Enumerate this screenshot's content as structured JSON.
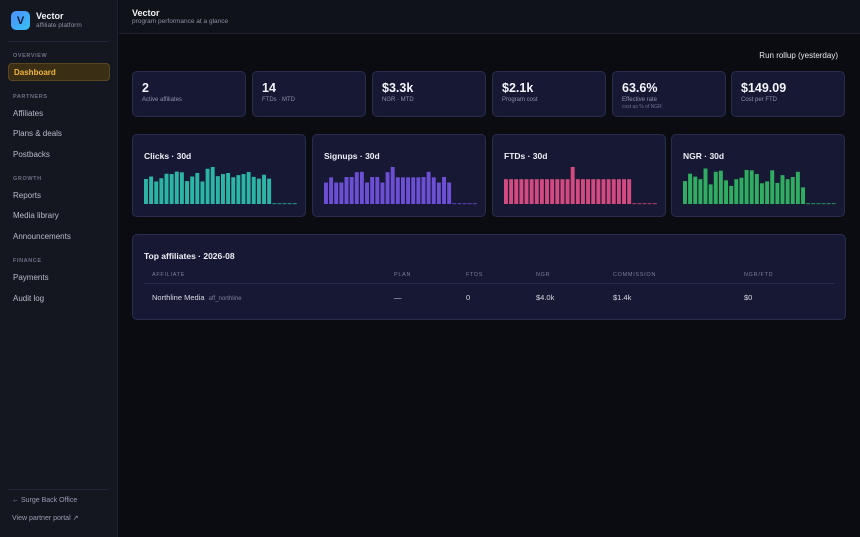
{
  "sidebar": {
    "brand": {
      "logo_letter": "V",
      "name": "Vector",
      "subtitle": "affiliate platform"
    },
    "sections": [
      {
        "title": "OVERVIEW",
        "items": [
          {
            "label": "Dashboard",
            "active": true
          }
        ]
      },
      {
        "title": "PARTNERS",
        "items": [
          {
            "label": "Affiliates"
          },
          {
            "label": "Plans & deals"
          },
          {
            "label": "Postbacks"
          }
        ]
      },
      {
        "title": "GROWTH",
        "items": [
          {
            "label": "Reports"
          },
          {
            "label": "Media library"
          },
          {
            "label": "Announcements"
          }
        ]
      },
      {
        "title": "FINANCE",
        "items": [
          {
            "label": "Payments"
          },
          {
            "label": "Audit log"
          }
        ]
      }
    ],
    "footer": {
      "back_link": "← Surge Back Office",
      "portal_link": "View partner portal ↗"
    }
  },
  "header": {
    "title": "Vector",
    "subtitle": "program performance at a glance"
  },
  "actions": {
    "rollup_label": "Run rollup (yesterday)"
  },
  "kpis": [
    {
      "value": "2",
      "label": "Active affiliates",
      "note": ""
    },
    {
      "value": "14",
      "label": "FTDs · MTD",
      "note": ""
    },
    {
      "value": "$3.3k",
      "label": "NGR · MTD",
      "note": ""
    },
    {
      "value": "$2.1k",
      "label": "Program cost",
      "note": ""
    },
    {
      "value": "63.6%",
      "label": "Effective rate",
      "note": "cost as % of NGR"
    },
    {
      "value": "$149.09",
      "label": "Cost per FTD",
      "note": ""
    }
  ],
  "chart_data": [
    {
      "type": "bar",
      "title": "Clicks · 30d",
      "color": "#2bb5a4",
      "values": [
        0.71,
        0.78,
        0.64,
        0.73,
        0.86,
        0.85,
        0.92,
        0.9,
        0.65,
        0.78,
        0.88,
        0.64,
        1.0,
        1.05,
        0.79,
        0.85,
        0.88,
        0.76,
        0.82,
        0.85,
        0.91,
        0.77,
        0.72,
        0.83,
        0.72,
        0,
        0,
        0,
        0,
        0
      ]
    },
    {
      "type": "bar",
      "title": "Signups · 30d",
      "color": "#6d4fd6",
      "values": [
        0.58,
        0.72,
        0.58,
        0.58,
        0.73,
        0.73,
        0.86,
        0.87,
        0.58,
        0.73,
        0.73,
        0.58,
        0.86,
        1.0,
        0.72,
        0.72,
        0.72,
        0.72,
        0.72,
        0.73,
        0.87,
        0.72,
        0.58,
        0.73,
        0.58,
        0,
        0,
        0,
        0,
        0
      ]
    },
    {
      "type": "bar",
      "title": "FTDs · 30d",
      "color": "#d24a80",
      "values": [
        0.67,
        0.67,
        0.67,
        0.67,
        0.67,
        0.67,
        0.67,
        0.67,
        0.67,
        0.67,
        0.67,
        0.67,
        0.67,
        1.0,
        0.67,
        0.67,
        0.67,
        0.67,
        0.67,
        0.67,
        0.67,
        0.67,
        0.67,
        0.67,
        0.67,
        0,
        0,
        0,
        0,
        0
      ]
    },
    {
      "type": "bar",
      "title": "NGR · 30d",
      "color": "#2fae62",
      "values": [
        0.62,
        0.82,
        0.74,
        0.67,
        0.96,
        0.53,
        0.87,
        0.9,
        0.64,
        0.49,
        0.67,
        0.71,
        0.92,
        0.91,
        0.81,
        0.56,
        0.61,
        0.91,
        0.57,
        0.78,
        0.67,
        0.73,
        0.87,
        0.45,
        0,
        0,
        0,
        0,
        0,
        0
      ]
    }
  ],
  "table": {
    "title": "Top affiliates · 2026-08",
    "columns": [
      "AFFILIATE",
      "PLAN",
      "FTDS",
      "NGR",
      "COMMISSION",
      "NGR/FTD"
    ],
    "rows": [
      {
        "affiliate": "Northline Media",
        "affiliate_id": "aff_northline",
        "plan": "—",
        "ftds": "0",
        "ngr": "$4.0k",
        "commission": "$1.4k",
        "ngr_ftd": "$0"
      }
    ]
  }
}
